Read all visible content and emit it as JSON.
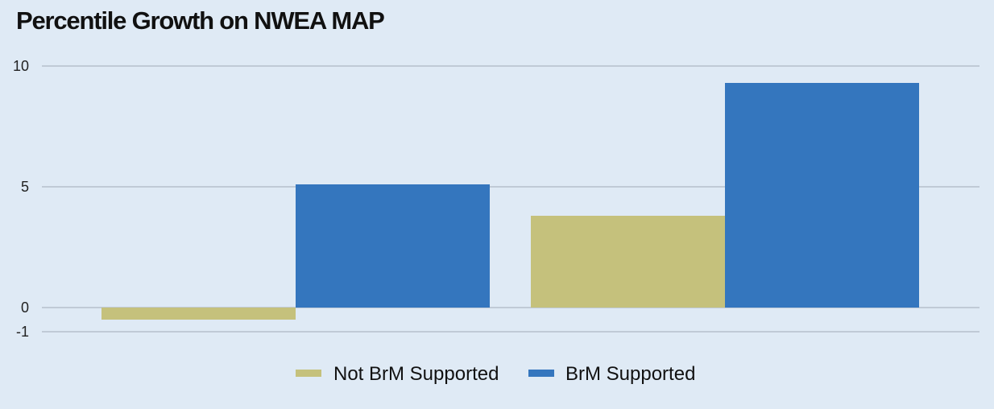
{
  "chart_data": {
    "type": "bar",
    "title": "Percentile Growth on NWEA MAP",
    "xlabel": "",
    "ylabel": "",
    "categories": [
      "",
      ""
    ],
    "series": [
      {
        "name": "Not BrM Supported",
        "color": "#c5c17c",
        "values": [
          -0.5,
          3.8
        ]
      },
      {
        "name": "BrM Supported",
        "color": "#3476be",
        "values": [
          5.1,
          9.3
        ]
      }
    ],
    "ylim": [
      -1,
      10
    ],
    "yticks": [
      -1,
      0,
      5,
      10
    ],
    "grid": true,
    "gridline_color": "#b5c0cc",
    "legend_position": "bottom"
  }
}
